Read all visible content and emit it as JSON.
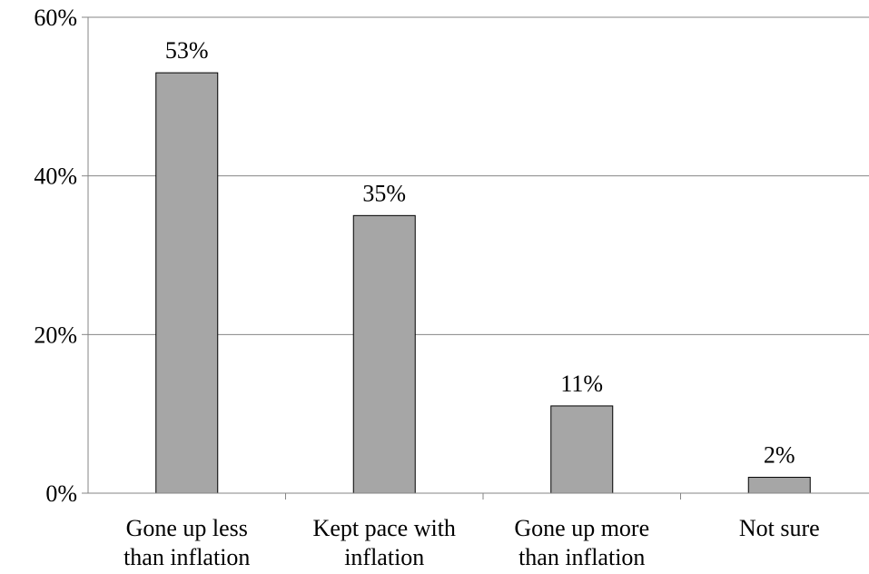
{
  "chart_data": {
    "type": "bar",
    "categories": [
      [
        "Gone up less",
        "than inflation"
      ],
      [
        "Kept pace with",
        "inflation"
      ],
      [
        "Gone up more",
        "than inflation"
      ],
      [
        "Not sure"
      ]
    ],
    "values": [
      53,
      35,
      11,
      2
    ],
    "data_labels": [
      "53%",
      "35%",
      "11%",
      "2%"
    ],
    "y_ticks": [
      0,
      20,
      40,
      60
    ],
    "y_tick_labels": [
      "0%",
      "20%",
      "40%",
      "60%"
    ],
    "ylim": [
      0,
      60
    ],
    "grid": true,
    "legend": "none",
    "bar_color": "#a6a6a6",
    "bar_stroke": "#000000",
    "axis_color": "#868686"
  }
}
